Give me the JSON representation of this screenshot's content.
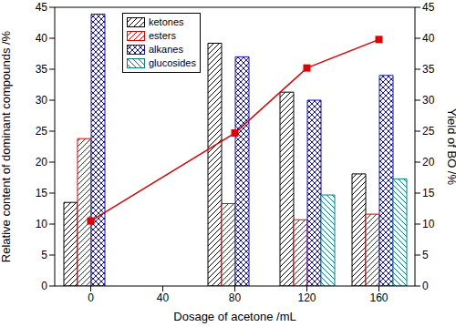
{
  "chart_data": {
    "type": "bar",
    "x": [
      0,
      80,
      120,
      160
    ],
    "xlim": [
      -20,
      180
    ],
    "xticks": [
      0,
      40,
      80,
      120,
      160
    ],
    "ylim": [
      0,
      45
    ],
    "yticks": [
      0,
      5,
      10,
      15,
      20,
      25,
      30,
      35,
      40,
      45
    ],
    "y2lim": [
      0,
      45
    ],
    "y2ticks": [
      0,
      5,
      10,
      15,
      20,
      25,
      30,
      35,
      40,
      45
    ],
    "xlabel": "Dosage of acetone /mL",
    "ylabel": "Relative content of dominant compounds /%",
    "y2label": "Yield of BO /%",
    "legend": "upper left",
    "grid": false,
    "series": [
      {
        "name": "ketones",
        "color": "#000000",
        "values": [
          13.5,
          39.2,
          31.3,
          18.1
        ]
      },
      {
        "name": "esters",
        "color": "#e00000",
        "values": [
          23.8,
          13.3,
          10.7,
          11.6
        ]
      },
      {
        "name": "alkanes",
        "color": "#1010c0",
        "values": [
          43.9,
          37.0,
          30.0,
          34.0
        ]
      },
      {
        "name": "glucosides",
        "color": "#008080",
        "values": [
          null,
          null,
          14.7,
          17.3
        ]
      },
      {
        "type": "line",
        "axis": "y2",
        "color": "#e00000",
        "marker": "square",
        "values": [
          10.5,
          24.7,
          35.2,
          39.8
        ]
      }
    ]
  }
}
